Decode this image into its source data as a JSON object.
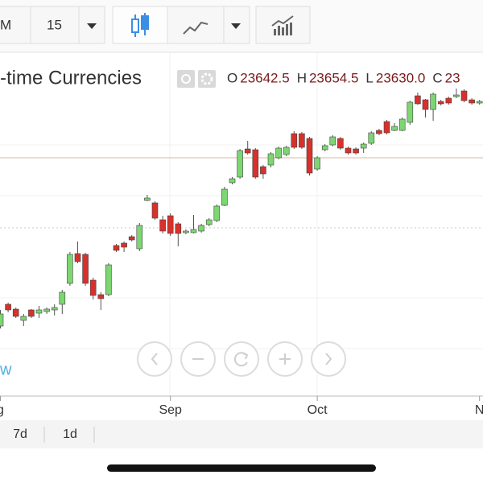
{
  "toolbar": {
    "interval_partial": "M",
    "interval": "15"
  },
  "legend": {
    "title": "-time Currencies",
    "ohlc": [
      {
        "label": "O",
        "value": "23642.5"
      },
      {
        "label": "H",
        "value": "23654.5"
      },
      {
        "label": "L",
        "value": "23630.0"
      },
      {
        "label": "C",
        "value": "23"
      }
    ]
  },
  "watermark": "w",
  "range_buttons": [
    "7d",
    "1d"
  ],
  "chart_data": {
    "type": "candlestick",
    "categories": [
      "g",
      null,
      null,
      null,
      null,
      null,
      null,
      null,
      null,
      null,
      null,
      null,
      null,
      null,
      null,
      null,
      null,
      null,
      null,
      null,
      null,
      null,
      "Sep",
      null,
      null,
      null,
      null,
      null,
      null,
      null,
      null,
      null,
      null,
      null,
      null,
      null,
      null,
      null,
      null,
      null,
      null,
      "Oct",
      null,
      null,
      null,
      null,
      null,
      null,
      null,
      null,
      null,
      null,
      null,
      null,
      null,
      null,
      null,
      null,
      null,
      null,
      null,
      null,
      "N"
    ],
    "open": [
      23100,
      23154,
      23142,
      23114,
      23140,
      23132,
      23136,
      23140,
      23154,
      23206,
      23280,
      23278,
      23214,
      23178,
      23178,
      23300,
      23306,
      23322,
      23292,
      23412,
      23406,
      23364,
      23374,
      23354,
      23332,
      23332,
      23336,
      23352,
      23362,
      23400,
      23456,
      23470,
      23540,
      23538,
      23496,
      23500,
      23518,
      23526,
      23578,
      23578,
      23566,
      23490,
      23538,
      23550,
      23566,
      23542,
      23540,
      23542,
      23554,
      23586,
      23608,
      23586,
      23586,
      23606,
      23672,
      23662,
      23638,
      23658,
      23666,
      23670,
      23684,
      23662,
      23654
    ],
    "high": [
      23140,
      23158,
      23146,
      23130,
      23142,
      23150,
      23146,
      23154,
      23190,
      23284,
      23310,
      23282,
      23220,
      23184,
      23256,
      23304,
      23310,
      23326,
      23356,
      23426,
      23410,
      23374,
      23380,
      23358,
      23340,
      23376,
      23354,
      23368,
      23402,
      23446,
      23470,
      23540,
      23560,
      23542,
      23500,
      23532,
      23546,
      23548,
      23584,
      23582,
      23570,
      23522,
      23552,
      23574,
      23570,
      23546,
      23544,
      23556,
      23584,
      23590,
      23612,
      23604,
      23618,
      23660,
      23680,
      23664,
      23680,
      23662,
      23670,
      23690,
      23688,
      23666,
      23662
    ],
    "low": [
      23094,
      23134,
      23120,
      23100,
      23120,
      23120,
      23130,
      23126,
      23130,
      23200,
      23256,
      23200,
      23166,
      23140,
      23174,
      23284,
      23284,
      23310,
      23286,
      23410,
      23364,
      23330,
      23324,
      23298,
      23328,
      23330,
      23332,
      23348,
      23358,
      23398,
      23452,
      23466,
      23526,
      23466,
      23466,
      23494,
      23514,
      23522,
      23540,
      23540,
      23474,
      23486,
      23534,
      23546,
      23538,
      23526,
      23526,
      23530,
      23550,
      23574,
      23576,
      23584,
      23584,
      23600,
      23650,
      23618,
      23610,
      23648,
      23650,
      23666,
      23656,
      23650,
      23650
    ],
    "close": [
      23130,
      23140,
      23124,
      23124,
      23124,
      23140,
      23142,
      23146,
      23184,
      23278,
      23260,
      23206,
      23176,
      23168,
      23252,
      23288,
      23296,
      23314,
      23350,
      23418,
      23368,
      23336,
      23330,
      23330,
      23336,
      23340,
      23350,
      23364,
      23398,
      23440,
      23466,
      23536,
      23530,
      23470,
      23478,
      23528,
      23542,
      23544,
      23544,
      23544,
      23480,
      23518,
      23548,
      23570,
      23542,
      23530,
      23530,
      23552,
      23580,
      23578,
      23580,
      23596,
      23614,
      23656,
      23652,
      23638,
      23676,
      23652,
      23654,
      23674,
      23660,
      23654,
      23658
    ],
    "ylim": [
      22930,
      23780
    ],
    "up_color": "#7dd672",
    "down_color": "#d8302b"
  }
}
